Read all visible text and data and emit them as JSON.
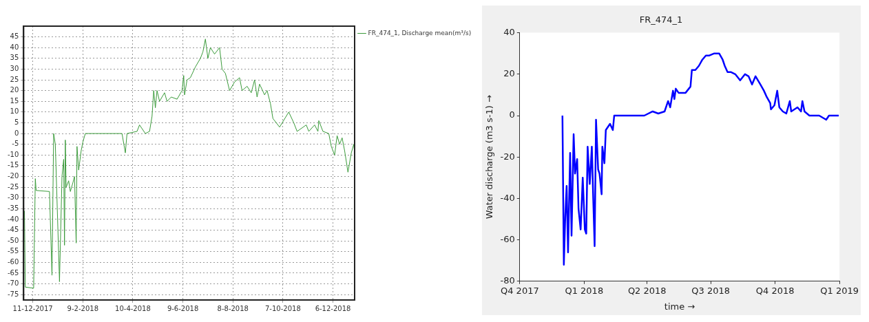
{
  "chart_data": [
    {
      "type": "line",
      "legend": "right",
      "grid": true,
      "xlim": [
        "2017-11-30",
        "2019-01-01"
      ],
      "xticks": [
        {
          "value": "2017-12-11",
          "label": "11-12-2017"
        },
        {
          "value": "2018-02-09",
          "label": "9-2-2018"
        },
        {
          "value": "2018-04-10",
          "label": "10-4-2018"
        },
        {
          "value": "2018-06-09",
          "label": "9-6-2018"
        },
        {
          "value": "2018-08-08",
          "label": "8-8-2018"
        },
        {
          "value": "2018-10-07",
          "label": "7-10-2018"
        },
        {
          "value": "2018-12-06",
          "label": "6-12-2018"
        }
      ],
      "ylim": [
        -77.5,
        50
      ],
      "yticks": [
        -75,
        -70,
        -65,
        -60,
        -55,
        -50,
        -45,
        -40,
        -35,
        -30,
        -25,
        -20,
        -15,
        -10,
        -5,
        0,
        5,
        10,
        15,
        20,
        25,
        30,
        35,
        40,
        45
      ],
      "series": [
        {
          "name": "FR_474_1, Discharge mean(m³/s)",
          "color": "#3a9a3a",
          "x": [
            "2017-12-01",
            "2017-12-02",
            "2017-12-12",
            "2017-12-14",
            "2017-12-15",
            "2017-12-31",
            "2018-01-03",
            "2018-01-05",
            "2018-01-07",
            "2018-01-12",
            "2018-01-15",
            "2018-01-17",
            "2018-01-18",
            "2018-01-19",
            "2018-01-20",
            "2018-01-23",
            "2018-01-25",
            "2018-01-28",
            "2018-01-30",
            "2018-01-31",
            "2018-02-01",
            "2018-02-02",
            "2018-02-04",
            "2018-02-07",
            "2018-02-09",
            "2018-02-12",
            "2018-03-28",
            "2018-04-01",
            "2018-04-03",
            "2018-04-15",
            "2018-04-18",
            "2018-04-25",
            "2018-04-30",
            "2018-05-03",
            "2018-05-05",
            "2018-05-07",
            "2018-05-09",
            "2018-05-12",
            "2018-05-18",
            "2018-05-21",
            "2018-05-26",
            "2018-06-02",
            "2018-06-08",
            "2018-06-10",
            "2018-06-11",
            "2018-06-14",
            "2018-06-18",
            "2018-06-24",
            "2018-06-30",
            "2018-07-03",
            "2018-07-06",
            "2018-07-09",
            "2018-07-12",
            "2018-07-17",
            "2018-07-23",
            "2018-07-26",
            "2018-07-30",
            "2018-08-04",
            "2018-08-10",
            "2018-08-16",
            "2018-08-19",
            "2018-08-25",
            "2018-08-30",
            "2018-09-03",
            "2018-09-06",
            "2018-09-09",
            "2018-09-15",
            "2018-09-18",
            "2018-09-22",
            "2018-09-25",
            "2018-10-03",
            "2018-10-14",
            "2018-10-20",
            "2018-10-24",
            "2018-11-04",
            "2018-11-07",
            "2018-11-14",
            "2018-11-18",
            "2018-11-19",
            "2018-11-24",
            "2018-12-01",
            "2018-12-04",
            "2018-12-08",
            "2018-12-11",
            "2018-12-14",
            "2018-12-17",
            "2018-12-20",
            "2018-12-24",
            "2018-12-28",
            "2018-12-31",
            "2019-01-01"
          ],
          "values": [
            -36,
            -71.5,
            -72,
            -21,
            -26.5,
            -27,
            -66,
            0,
            -5,
            -69,
            -20,
            -12,
            -52,
            -3,
            -25,
            -22,
            -27,
            -23,
            -20,
            -35,
            -51,
            -6,
            -17,
            -8,
            -4,
            0,
            0,
            -9,
            0,
            1,
            4,
            0,
            1,
            8,
            20,
            12,
            20,
            15,
            19,
            15,
            17,
            16,
            20,
            27,
            18,
            25,
            26,
            31,
            35,
            38,
            44,
            35,
            40,
            37,
            40,
            30,
            28,
            20,
            24,
            26,
            20,
            22,
            19,
            25,
            17,
            23,
            18,
            20,
            14,
            7,
            3,
            10,
            5,
            1,
            4,
            1,
            4,
            1,
            6,
            1,
            0,
            -6,
            -10,
            -1,
            -5,
            -2,
            -8,
            -18,
            -9,
            -5,
            -9
          ]
        }
      ]
    },
    {
      "type": "line",
      "title": "FR_474_1",
      "xlabel": "time →",
      "ylabel": "Water discharge (m3 s-1) →",
      "grid": false,
      "xlim": [
        "2017-10-01",
        "2019-01-01"
      ],
      "xticks": [
        {
          "value": "2017-10-01",
          "label": "Q4 2017"
        },
        {
          "value": "2018-01-01",
          "label": "Q1 2018"
        },
        {
          "value": "2018-04-01",
          "label": "Q2 2018"
        },
        {
          "value": "2018-07-01",
          "label": "Q3 2018"
        },
        {
          "value": "2018-10-01",
          "label": "Q4 2018"
        },
        {
          "value": "2019-01-01",
          "label": "Q1 2019"
        }
      ],
      "ylim": [
        -80,
        40
      ],
      "yticks": [
        -80,
        -60,
        -40,
        -20,
        0,
        20,
        40
      ],
      "series": [
        {
          "color": "#0000ff",
          "x": [
            "2017-12-01",
            "2017-12-02",
            "2017-12-03",
            "2017-12-05",
            "2017-12-07",
            "2017-12-09",
            "2017-12-12",
            "2017-12-14",
            "2017-12-17",
            "2017-12-19",
            "2017-12-22",
            "2017-12-24",
            "2017-12-27",
            "2017-12-30",
            "2018-01-02",
            "2018-01-04",
            "2018-01-06",
            "2018-01-09",
            "2018-01-12",
            "2018-01-14",
            "2018-01-16",
            "2018-01-18",
            "2018-01-21",
            "2018-01-23",
            "2018-01-26",
            "2018-01-27",
            "2018-01-30",
            "2018-02-01",
            "2018-02-07",
            "2018-02-11",
            "2018-02-13",
            "2018-02-28",
            "2018-03-28",
            "2018-04-09",
            "2018-04-17",
            "2018-04-26",
            "2018-05-01",
            "2018-05-04",
            "2018-05-08",
            "2018-05-10",
            "2018-05-12",
            "2018-05-16",
            "2018-05-26",
            "2018-06-02",
            "2018-06-04",
            "2018-06-09",
            "2018-06-14",
            "2018-06-19",
            "2018-06-24",
            "2018-06-29",
            "2018-07-06",
            "2018-07-13",
            "2018-07-18",
            "2018-07-21",
            "2018-07-25",
            "2018-07-30",
            "2018-08-05",
            "2018-08-12",
            "2018-08-19",
            "2018-08-24",
            "2018-08-29",
            "2018-09-03",
            "2018-09-10",
            "2018-09-15",
            "2018-09-19",
            "2018-09-24",
            "2018-09-25",
            "2018-09-30",
            "2018-10-04",
            "2018-10-07",
            "2018-10-12",
            "2018-10-17",
            "2018-10-22",
            "2018-10-24",
            "2018-11-02",
            "2018-11-07",
            "2018-11-09",
            "2018-11-12",
            "2018-11-19",
            "2018-12-03",
            "2018-12-13",
            "2018-12-17",
            "2018-12-31"
          ],
          "values": [
            0,
            -36,
            -72,
            -49,
            -34,
            -66,
            -18,
            -58,
            -9,
            -28,
            -21,
            -45,
            -55,
            -30,
            -55,
            -57,
            -15,
            -33,
            -15,
            -40,
            -63,
            -2,
            -26,
            -28,
            -38,
            -15,
            -23,
            -7,
            -4,
            -7,
            0,
            0,
            0,
            2,
            1,
            2,
            7,
            4,
            12,
            8,
            13,
            11,
            11,
            14,
            22,
            22,
            24,
            27,
            29,
            29,
            30,
            30,
            27,
            24,
            21,
            21,
            20,
            17,
            20,
            19,
            15,
            19,
            15,
            12,
            9,
            6,
            3,
            5,
            12,
            4,
            2,
            1,
            7,
            2,
            4,
            2,
            7,
            2,
            0,
            0,
            -2,
            0,
            0
          ]
        }
      ]
    }
  ]
}
